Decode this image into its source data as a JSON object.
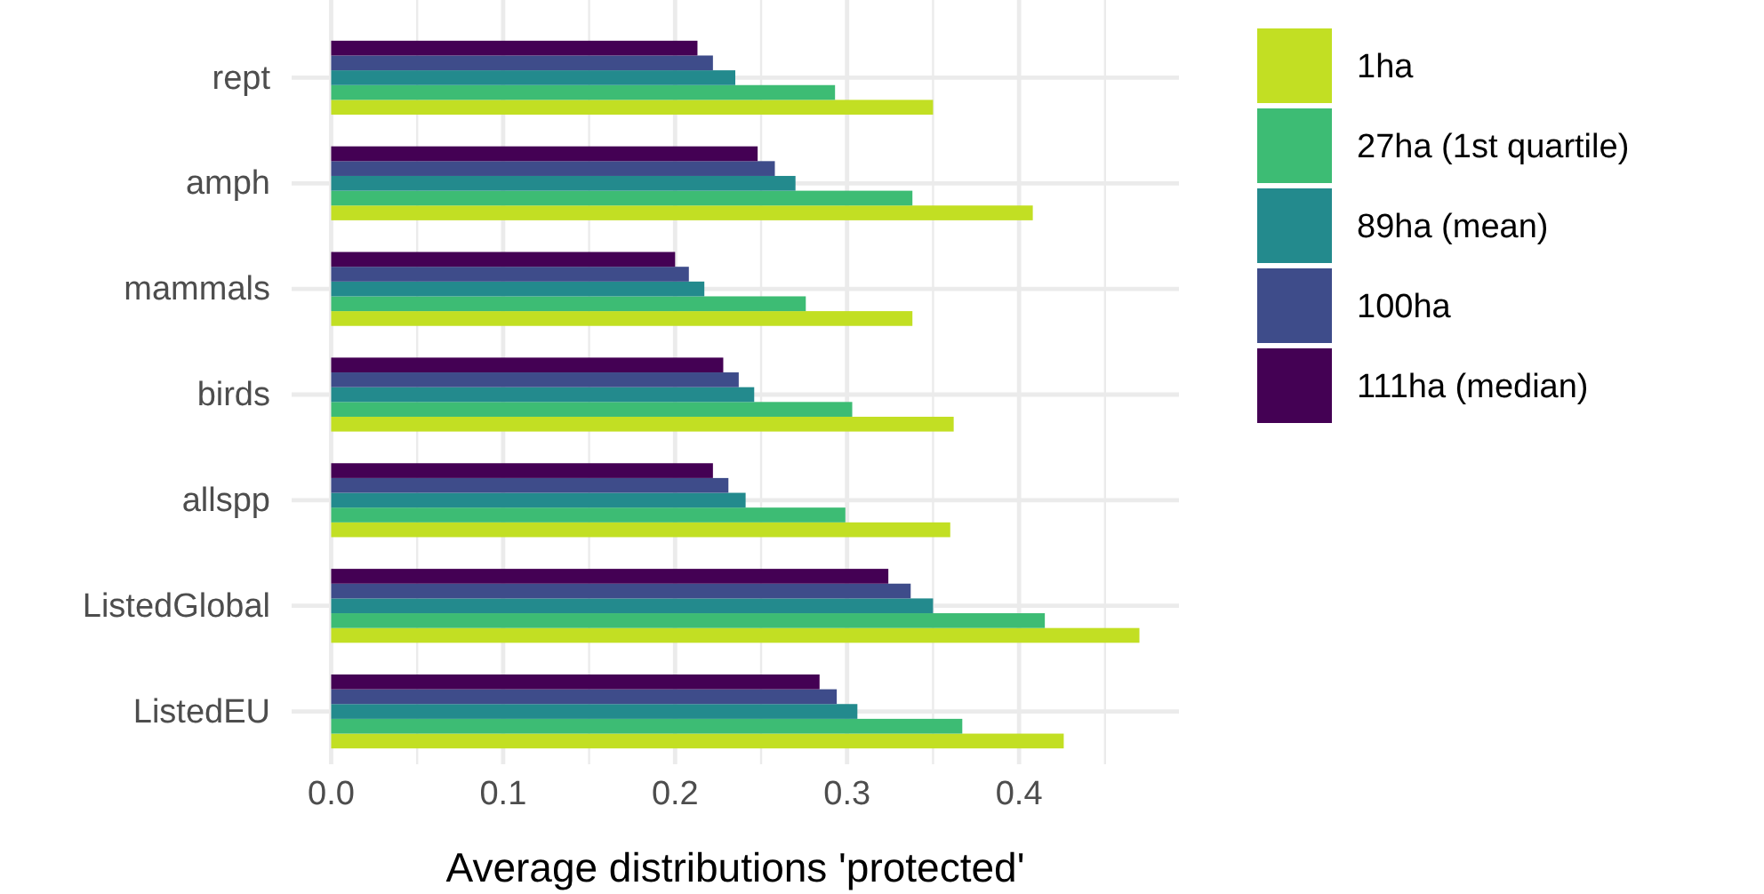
{
  "chart_data": {
    "type": "bar",
    "orientation": "horizontal",
    "xlabel": "Average distributions 'protected'",
    "categories": [
      "rept",
      "amph",
      "mammals",
      "birds",
      "allspp",
      "ListedGlobal",
      "ListedEU"
    ],
    "series": [
      {
        "name": "1ha",
        "color": "#c2df23",
        "values": [
          0.35,
          0.408,
          0.338,
          0.362,
          0.36,
          0.47,
          0.426
        ]
      },
      {
        "name": "27ha (1st quartile)",
        "color": "#3dbc74",
        "values": [
          0.293,
          0.338,
          0.276,
          0.303,
          0.299,
          0.415,
          0.367
        ]
      },
      {
        "name": "89ha (mean)",
        "color": "#238a8d",
        "values": [
          0.235,
          0.27,
          0.217,
          0.246,
          0.241,
          0.35,
          0.306
        ]
      },
      {
        "name": "100ha",
        "color": "#3e4c8a",
        "values": [
          0.222,
          0.258,
          0.208,
          0.237,
          0.231,
          0.337,
          0.294
        ]
      },
      {
        "name": "111ha (median)",
        "color": "#440154",
        "values": [
          0.213,
          0.248,
          0.2,
          0.228,
          0.222,
          0.324,
          0.284
        ]
      }
    ],
    "xlim": [
      -0.023,
      0.493
    ],
    "xticks": [
      {
        "value": 0,
        "label": "0.0"
      },
      {
        "value": 0.05,
        "label": null
      },
      0.1,
      {
        "value": 0.15,
        "label": null
      },
      0.2,
      {
        "value": 0.25,
        "label": null
      },
      0.3,
      {
        "value": 0.35,
        "label": null
      },
      0.4,
      {
        "value": 0.45,
        "label": null
      }
    ],
    "grid": true,
    "legend": "right"
  }
}
